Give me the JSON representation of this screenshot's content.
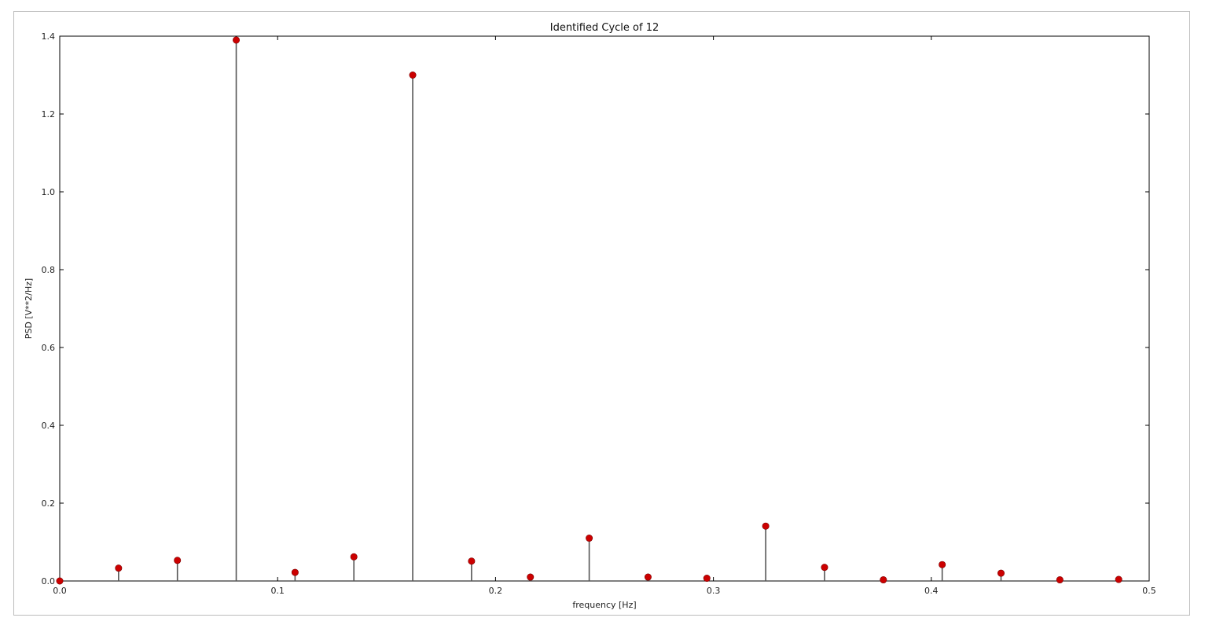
{
  "chart_data": {
    "type": "stem",
    "title": "Identified Cycle of 12",
    "xlabel": "frequency [Hz]",
    "ylabel": "PSD [V**2/Hz]",
    "xlim": [
      0.0,
      0.5
    ],
    "ylim": [
      0.0,
      1.4
    ],
    "x_ticks": [
      "0.0",
      "0.1",
      "0.2",
      "0.3",
      "0.4",
      "0.5"
    ],
    "y_ticks": [
      "0.0",
      "0.2",
      "0.4",
      "0.6",
      "0.8",
      "1.0",
      "1.2",
      "1.4"
    ],
    "grid": false,
    "series": [
      {
        "x": [
          0.0,
          0.027,
          0.054,
          0.081,
          0.108,
          0.135,
          0.162,
          0.189,
          0.216,
          0.243,
          0.27,
          0.297,
          0.324,
          0.351,
          0.378,
          0.405,
          0.432,
          0.459,
          0.486
        ],
        "y": [
          0.0,
          0.033,
          0.053,
          1.39,
          0.022,
          0.062,
          1.3,
          0.051,
          0.01,
          0.11,
          0.01,
          0.007,
          0.141,
          0.035,
          0.003,
          0.042,
          0.02,
          0.003,
          0.004
        ]
      }
    ],
    "colors": {
      "marker": "#cc0000",
      "stem": "#555555",
      "axis": "#000000"
    }
  }
}
